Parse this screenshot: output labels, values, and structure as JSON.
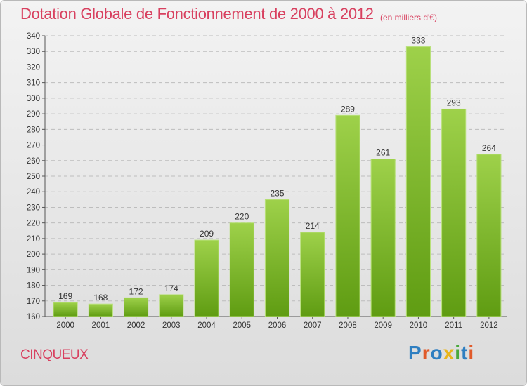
{
  "header": {
    "title": "Dotation Globale de Fonctionnement de 2000 à 2012",
    "unit": "(en milliers d'€)"
  },
  "footer": {
    "commune": "CINQUEUX",
    "brand": "Proxiti"
  },
  "colors": {
    "accent": "#d8405f",
    "bar_top": "#9ed14a",
    "bar_bottom": "#5f9c12",
    "grid": "#bdbdbd"
  },
  "chart_data": {
    "type": "bar",
    "title": "Dotation Globale de Fonctionnement de 2000 à 2012",
    "subtitle": "(en milliers d'€)",
    "xlabel": "",
    "ylabel": "",
    "categories": [
      "2000",
      "2001",
      "2002",
      "2003",
      "2004",
      "2005",
      "2006",
      "2007",
      "2008",
      "2009",
      "2010",
      "2011",
      "2012"
    ],
    "values": [
      169,
      168,
      172,
      174,
      209,
      220,
      235,
      214,
      289,
      261,
      333,
      293,
      264
    ],
    "ylim": [
      160,
      340
    ],
    "ytick_step": 10,
    "grid": true
  }
}
